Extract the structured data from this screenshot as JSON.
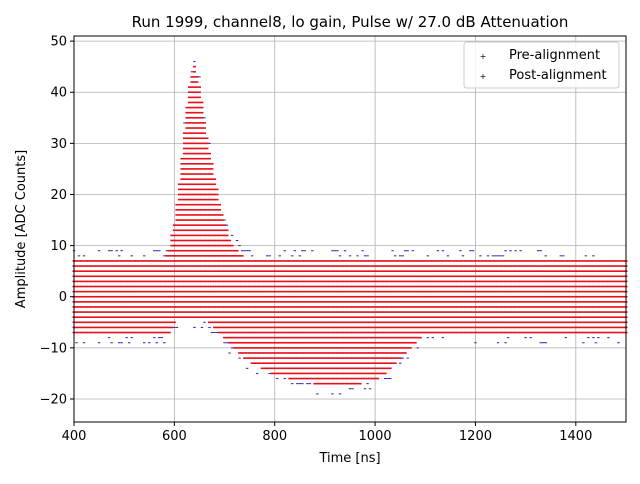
{
  "chart_data": {
    "type": "scatter",
    "title": "Run 1999, channel8, lo gain, Pulse w/ 27.0 dB Attenuation",
    "xlabel": "Time [ns]",
    "ylabel": "Amplitude [ADC Counts]",
    "xlim": [
      400,
      1500
    ],
    "ylim": [
      -24.5,
      51
    ],
    "xticks": [
      400,
      600,
      800,
      1000,
      1200,
      1400
    ],
    "xtick_labels": [
      "400",
      "600",
      "800",
      "1000",
      "1200",
      "1400"
    ],
    "yticks": [
      -20,
      -10,
      0,
      10,
      20,
      30,
      40,
      50
    ],
    "ytick_labels": [
      "−20",
      "−10",
      "0",
      "10",
      "20",
      "30",
      "40",
      "50"
    ],
    "grid": true,
    "legend_position": "top-right",
    "series": [
      {
        "name": "Pre-alignment",
        "color": "#1f1fbf",
        "marker": "+"
      },
      {
        "name": "Post-alignment",
        "color": "#e8101a",
        "marker": "+"
      }
    ],
    "sample_spacing_ns": 5,
    "envelope": {
      "t": [
        400,
        560,
        580,
        590,
        600,
        610,
        620,
        630,
        640,
        650,
        660,
        670,
        680,
        690,
        700,
        710,
        720,
        730,
        740,
        760,
        780,
        800,
        850,
        900,
        950,
        1000,
        1020,
        1040,
        1060,
        1080,
        1100,
        1200,
        1300,
        1400,
        1500
      ],
      "max": [
        7,
        7,
        7,
        9,
        14,
        22,
        32,
        41,
        45,
        41,
        34,
        28,
        23,
        18,
        14,
        11,
        9,
        8,
        7,
        7,
        7,
        7,
        7,
        7,
        7,
        7,
        7,
        7,
        7,
        7,
        7,
        7,
        7,
        7,
        7
      ],
      "min": [
        -7,
        -7,
        -7,
        -7,
        -5,
        -4,
        -4,
        -4,
        -4,
        -4,
        -4,
        -5,
        -6,
        -7,
        -8,
        -9,
        -10,
        -11,
        -12,
        -13,
        -14,
        -15,
        -16,
        -17,
        -17,
        -16,
        -15,
        -13,
        -11,
        -9,
        -7,
        -7,
        -7,
        -7,
        -7
      ]
    }
  }
}
